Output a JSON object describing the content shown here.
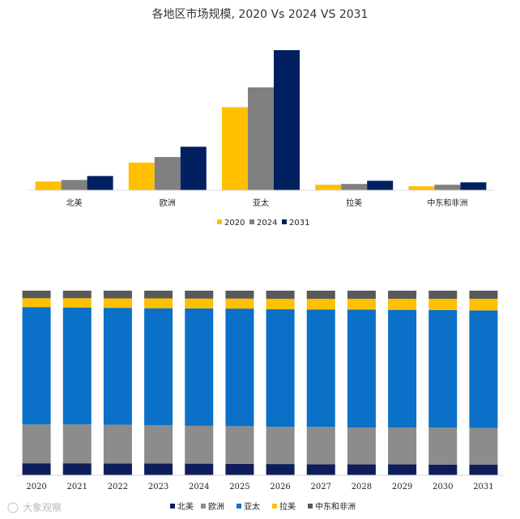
{
  "colors": {
    "y2020": "#FFC000",
    "y2024": "#808080",
    "y2031": "#002060",
    "north_america": "#0F1E5A",
    "europe": "#8C8C8C",
    "asia_pacific": "#0A70C8",
    "latam": "#FFC000",
    "mea": "#595959",
    "axis": "#D9D9D9"
  },
  "chart_data": [
    {
      "type": "bar",
      "title": "各地区市场规模, 2020 Vs 2024 VS 2031",
      "categories": [
        "北美",
        "欧洲",
        "亚太",
        "拉美",
        "中东和非洲"
      ],
      "series": [
        {
          "name": "2020",
          "values": [
            11,
            35,
            105,
            7,
            5
          ]
        },
        {
          "name": "2024",
          "values": [
            13,
            42,
            130,
            8,
            7
          ]
        },
        {
          "name": "2031",
          "values": [
            18,
            55,
            177,
            12,
            10
          ]
        }
      ],
      "ylim": [
        0,
        180
      ],
      "xlabel": "",
      "ylabel": "",
      "grid": false,
      "legend": "bottom"
    },
    {
      "type": "bar",
      "stacked": true,
      "percent": true,
      "categories": [
        "2020",
        "2021",
        "2022",
        "2023",
        "2024",
        "2025",
        "2026",
        "2027",
        "2028",
        "2029",
        "2030",
        "2031"
      ],
      "series": [
        {
          "name": "北美",
          "values": [
            6.5,
            6.5,
            6.4,
            6.4,
            6.3,
            6.2,
            6.1,
            6.0,
            5.9,
            5.9,
            5.8,
            5.7
          ]
        },
        {
          "name": "欧洲",
          "values": [
            21.0,
            21.0,
            21.0,
            20.7,
            20.5,
            20.4,
            20.2,
            20.2,
            20.0,
            20.0,
            20.0,
            20.0
          ]
        },
        {
          "name": "亚太",
          "values": [
            63.6,
            63.4,
            63.3,
            63.4,
            63.6,
            63.7,
            63.6,
            63.6,
            63.8,
            63.7,
            63.7,
            63.6
          ]
        },
        {
          "name": "拉美",
          "values": [
            4.8,
            5.0,
            5.1,
            5.3,
            5.3,
            5.4,
            5.7,
            5.8,
            5.9,
            6.0,
            6.1,
            6.3
          ]
        },
        {
          "name": "中东和非洲",
          "values": [
            4.1,
            4.1,
            4.2,
            4.2,
            4.3,
            4.3,
            4.4,
            4.4,
            4.4,
            4.4,
            4.4,
            4.4
          ]
        }
      ],
      "ylim": [
        0,
        100
      ],
      "xlabel": "",
      "ylabel": "",
      "grid": false,
      "legend": "bottom"
    }
  ],
  "watermark": {
    "text": "大象观察"
  }
}
